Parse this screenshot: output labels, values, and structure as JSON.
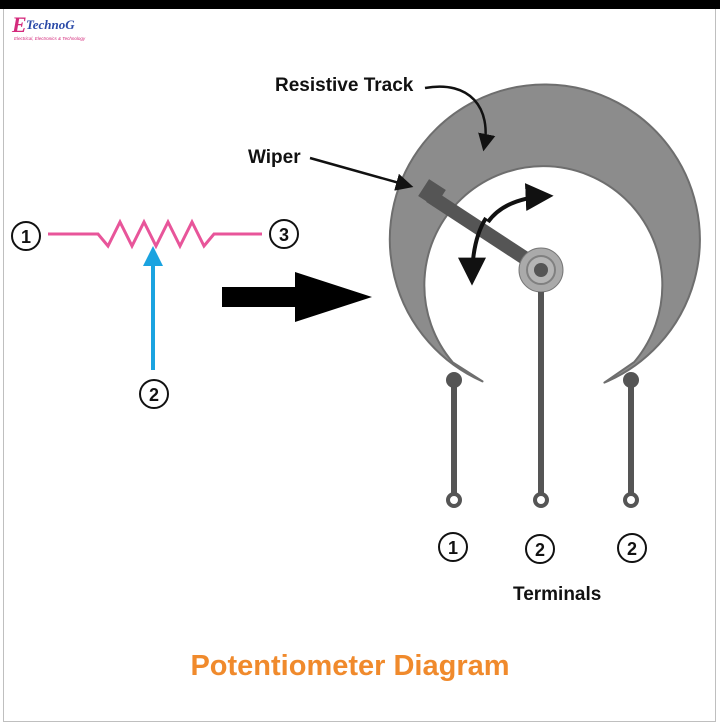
{
  "logo": {
    "mark": "E",
    "word": "TechnoG",
    "tagline": "Electrical, Electronics & Technology"
  },
  "labels": {
    "resistive_track": "Resistive Track",
    "wiper": "Wiper",
    "terminals": "Terminals"
  },
  "symbol_terminals": [
    "1",
    "3",
    "2"
  ],
  "component_terminals": [
    "1",
    "2",
    "2"
  ],
  "caption": "Potentiometer Diagram",
  "colors": {
    "resistor_symbol": "#e8559a",
    "wiper_arrow": "#1aa3e0",
    "track": "#8c8c8c",
    "track_outline": "#6e6e6e",
    "lead": "#555555",
    "caption": "#f08a2c"
  }
}
